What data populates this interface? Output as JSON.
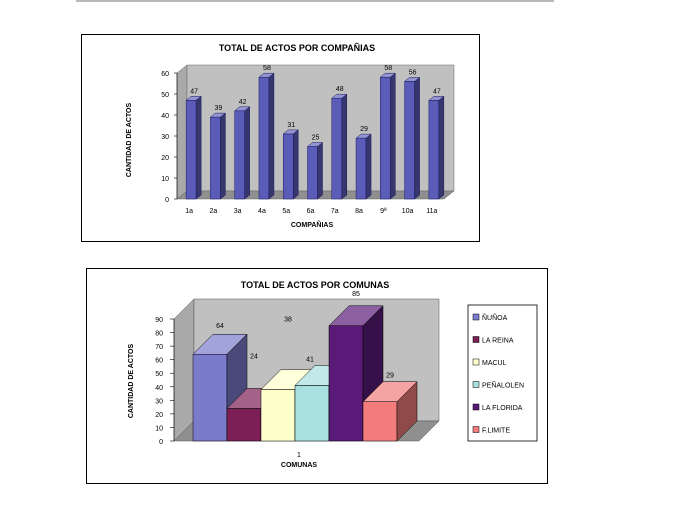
{
  "chart_data": [
    {
      "type": "bar",
      "title": "TOTAL DE ACTOS POR COMPAÑIAS",
      "xlabel": "COMPAÑIAS",
      "ylabel": "CANTIDAD DE ACTOS",
      "ylim": [
        0,
        60
      ],
      "yticks": [
        "0",
        "10",
        "20",
        "30",
        "40",
        "50",
        "60"
      ],
      "categories": [
        "1a",
        "2a",
        "3a",
        "4a",
        "5a",
        "6a",
        "7a",
        "8a",
        "9ª",
        "10a",
        "11a"
      ],
      "values": [
        47,
        39,
        42,
        58,
        31,
        25,
        48,
        29,
        58,
        56,
        47
      ],
      "data_labels": [
        "47",
        "39",
        "42",
        "58",
        "31",
        "25",
        "48",
        "29",
        "58",
        "56",
        "47"
      ],
      "three_d": true,
      "grid": false,
      "bar_color": "#5b5bb8",
      "wall_color": "#c0c0c0"
    },
    {
      "type": "bar",
      "title": "TOTAL DE ACTOS POR COMUNAS",
      "xlabel": "COMUNAS",
      "ylabel": "CANTIDAD DE ACTOS",
      "ylim": [
        0,
        90
      ],
      "yticks": [
        "0",
        "10",
        "20",
        "30",
        "40",
        "50",
        "60",
        "70",
        "80",
        "90"
      ],
      "categories": [
        "1"
      ],
      "legend_position": "right",
      "three_d": true,
      "grid": false,
      "wall_color": "#c0c0c0",
      "series": [
        {
          "name": "ÑUÑOA",
          "values": [
            64
          ],
          "label": "64",
          "color": "#7b7bcc"
        },
        {
          "name": "LA REINA",
          "values": [
            24
          ],
          "label": "24",
          "color": "#7d1f57"
        },
        {
          "name": "MACUL",
          "values": [
            38
          ],
          "label": "38",
          "color": "#ffffcc"
        },
        {
          "name": "PEÑALOLEN",
          "values": [
            41
          ],
          "label": "41",
          "color": "#a8e0e0"
        },
        {
          "name": "LA FLORIDA",
          "values": [
            85
          ],
          "label": "85",
          "color": "#5a1a78"
        },
        {
          "name": "F.LIMITE",
          "values": [
            29
          ],
          "label": "29",
          "color": "#f27c7c"
        }
      ]
    }
  ]
}
